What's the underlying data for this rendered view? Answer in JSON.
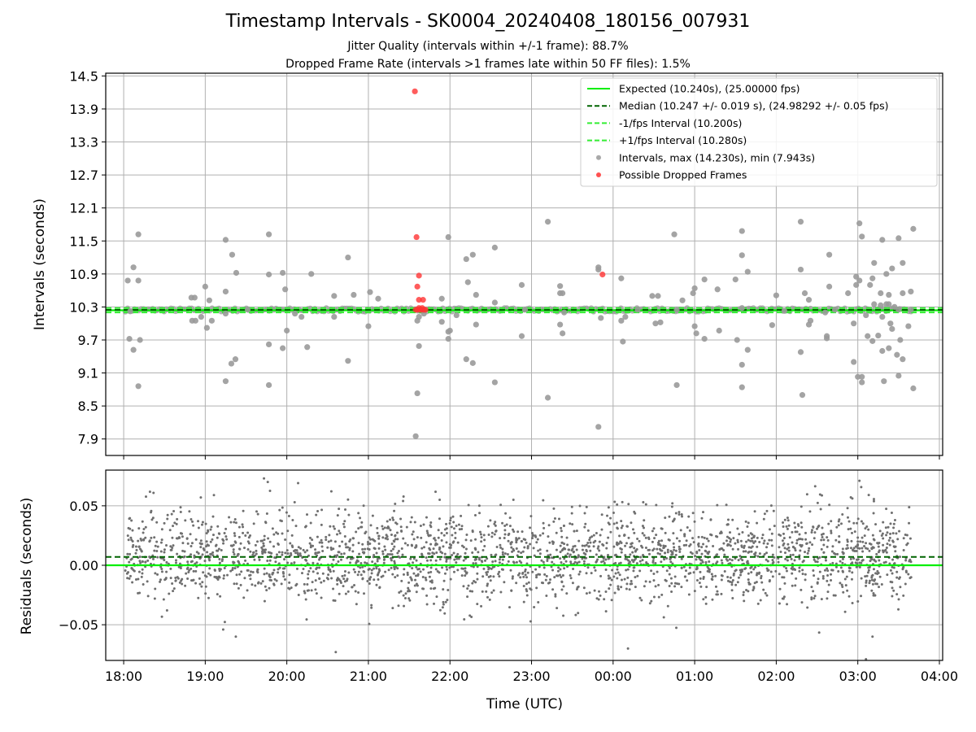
{
  "chart_data": [
    {
      "type": "scatter",
      "title": "Timestamp Intervals - SK0004_20240408_180156_007931",
      "subtitle_lines": [
        "Jitter Quality (intervals within +/-1 frame): 88.7%",
        "Dropped Frame Rate (intervals >1 frames late within 50 FF files): 1.5%"
      ],
      "xlabel": "",
      "ylabel": "Intervals (seconds)",
      "xlim_hours": [
        -0.22,
        10.04
      ],
      "ylim": [
        7.6,
        14.55
      ],
      "yticks": [
        7.9,
        8.5,
        9.1,
        9.7,
        10.3,
        10.9,
        11.5,
        12.1,
        12.7,
        13.3,
        13.9,
        14.5
      ],
      "ytick_labels": [
        "7.9",
        "8.5",
        "9.1",
        "9.7",
        "10.3",
        "10.9",
        "11.5",
        "12.1",
        "12.7",
        "13.3",
        "13.9",
        "14.5"
      ],
      "grid": true,
      "legend_position": "upper-right",
      "legend": [
        "Expected (10.240s), (25.00000 fps)",
        "Median (10.247 +/- 0.019 s), (24.98292 +/- 0.05 fps)",
        "-1/fps Interval (10.200s)",
        "+1/fps Interval (10.280s)",
        "Intervals, max (14.230s), min (7.943s)",
        "Possible Dropped Frames"
      ],
      "reference_lines": {
        "expected": 10.24,
        "median": 10.247,
        "minus_one_frame": 10.2,
        "plus_one_frame": 10.28
      },
      "outlier_intervals": [
        [
          0.05,
          10.78
        ],
        [
          0.07,
          9.72
        ],
        [
          0.08,
          10.22
        ],
        [
          0.12,
          9.52
        ],
        [
          0.12,
          11.02
        ],
        [
          0.18,
          11.62
        ],
        [
          0.18,
          10.78
        ],
        [
          0.18,
          8.86
        ],
        [
          0.2,
          9.7
        ],
        [
          0.83,
          10.47
        ],
        [
          0.87,
          10.47
        ],
        [
          0.84,
          10.05
        ],
        [
          0.88,
          10.05
        ],
        [
          0.95,
          10.12
        ],
        [
          1.0,
          10.67
        ],
        [
          1.02,
          9.92
        ],
        [
          1.05,
          10.42
        ],
        [
          1.08,
          10.05
        ],
        [
          1.25,
          10.18
        ],
        [
          1.25,
          10.58
        ],
        [
          1.25,
          8.95
        ],
        [
          1.25,
          11.52
        ],
        [
          1.32,
          9.27
        ],
        [
          1.33,
          11.25
        ],
        [
          1.37,
          9.35
        ],
        [
          1.38,
          10.92
        ],
        [
          1.52,
          10.25
        ],
        [
          1.78,
          11.62
        ],
        [
          1.78,
          8.88
        ],
        [
          1.78,
          9.62
        ],
        [
          1.78,
          10.89
        ],
        [
          1.95,
          9.55
        ],
        [
          1.95,
          10.92
        ],
        [
          1.98,
          10.62
        ],
        [
          2.0,
          9.87
        ],
        [
          2.1,
          10.18
        ],
        [
          2.18,
          10.12
        ],
        [
          2.25,
          9.57
        ],
        [
          2.3,
          10.9
        ],
        [
          2.58,
          10.12
        ],
        [
          2.58,
          10.5
        ],
        [
          2.75,
          9.32
        ],
        [
          2.75,
          11.2
        ],
        [
          2.82,
          10.52
        ],
        [
          3.0,
          9.95
        ],
        [
          3.02,
          10.57
        ],
        [
          3.12,
          10.45
        ],
        [
          3.58,
          7.95
        ],
        [
          3.6,
          8.73
        ],
        [
          3.62,
          9.59
        ],
        [
          3.6,
          10.05
        ],
        [
          3.62,
          10.12
        ],
        [
          3.68,
          10.18
        ],
        [
          3.9,
          10.45
        ],
        [
          3.9,
          10.03
        ],
        [
          3.98,
          11.57
        ],
        [
          3.98,
          9.85
        ],
        [
          3.98,
          9.72
        ],
        [
          4.0,
          9.87
        ],
        [
          4.08,
          10.15
        ],
        [
          4.2,
          11.17
        ],
        [
          4.2,
          9.35
        ],
        [
          4.22,
          10.75
        ],
        [
          4.28,
          11.25
        ],
        [
          4.28,
          9.28
        ],
        [
          4.32,
          10.52
        ],
        [
          4.32,
          9.98
        ],
        [
          4.55,
          11.38
        ],
        [
          4.55,
          8.93
        ],
        [
          4.55,
          10.38
        ],
        [
          4.88,
          10.7
        ],
        [
          4.88,
          9.77
        ],
        [
          4.92,
          10.25
        ],
        [
          5.2,
          11.85
        ],
        [
          5.2,
          8.65
        ],
        [
          5.35,
          10.55
        ],
        [
          5.35,
          10.68
        ],
        [
          5.38,
          10.55
        ],
        [
          5.35,
          9.98
        ],
        [
          5.38,
          9.82
        ],
        [
          5.4,
          10.2
        ],
        [
          5.82,
          11.02
        ],
        [
          5.82,
          10.98
        ],
        [
          5.82,
          8.12
        ],
        [
          5.85,
          10.1
        ],
        [
          6.1,
          10.82
        ],
        [
          6.1,
          10.05
        ],
        [
          6.12,
          9.67
        ],
        [
          6.15,
          10.12
        ],
        [
          6.3,
          10.25
        ],
        [
          6.48,
          10.5
        ],
        [
          6.52,
          10.0
        ],
        [
          6.55,
          10.5
        ],
        [
          6.58,
          10.02
        ],
        [
          6.75,
          11.62
        ],
        [
          6.78,
          8.88
        ],
        [
          6.78,
          10.25
        ],
        [
          6.85,
          10.42
        ],
        [
          6.98,
          10.55
        ],
        [
          7.0,
          10.64
        ],
        [
          7.0,
          9.95
        ],
        [
          7.02,
          9.82
        ],
        [
          7.12,
          10.8
        ],
        [
          7.12,
          9.72
        ],
        [
          7.28,
          10.62
        ],
        [
          7.3,
          9.87
        ],
        [
          7.5,
          10.8
        ],
        [
          7.52,
          9.7
        ],
        [
          7.58,
          9.25
        ],
        [
          7.58,
          11.24
        ],
        [
          7.58,
          11.68
        ],
        [
          7.58,
          10.28
        ],
        [
          7.58,
          8.84
        ],
        [
          7.65,
          9.52
        ],
        [
          7.65,
          10.94
        ],
        [
          7.95,
          9.97
        ],
        [
          8.0,
          10.51
        ],
        [
          8.1,
          10.23
        ],
        [
          8.3,
          11.85
        ],
        [
          8.3,
          10.98
        ],
        [
          8.3,
          9.48
        ],
        [
          8.32,
          8.7
        ],
        [
          8.35,
          10.55
        ],
        [
          8.4,
          10.43
        ],
        [
          8.4,
          9.98
        ],
        [
          8.42,
          10.05
        ],
        [
          8.6,
          10.2
        ],
        [
          8.62,
          9.77
        ],
        [
          8.62,
          9.73
        ],
        [
          8.65,
          10.67
        ],
        [
          8.65,
          11.25
        ],
        [
          8.72,
          10.25
        ],
        [
          8.88,
          10.55
        ],
        [
          8.95,
          10.0
        ],
        [
          8.95,
          9.3
        ],
        [
          8.98,
          10.7
        ],
        [
          8.98,
          10.85
        ],
        [
          9.0,
          9.03
        ],
        [
          9.02,
          10.78
        ],
        [
          9.02,
          11.82
        ],
        [
          9.05,
          9.03
        ],
        [
          9.05,
          8.93
        ],
        [
          9.05,
          11.58
        ],
        [
          9.1,
          10.15
        ],
        [
          9.12,
          9.77
        ],
        [
          9.15,
          10.7
        ],
        [
          9.18,
          10.82
        ],
        [
          9.18,
          9.68
        ],
        [
          9.2,
          11.1
        ],
        [
          9.2,
          10.35
        ],
        [
          9.25,
          9.78
        ],
        [
          9.28,
          10.55
        ],
        [
          9.28,
          10.33
        ],
        [
          9.3,
          9.5
        ],
        [
          9.3,
          11.52
        ],
        [
          9.3,
          10.12
        ],
        [
          9.32,
          8.95
        ],
        [
          9.35,
          10.9
        ],
        [
          9.35,
          10.35
        ],
        [
          9.38,
          9.55
        ],
        [
          9.38,
          10.52
        ],
        [
          9.38,
          10.35
        ],
        [
          9.4,
          10.0
        ],
        [
          9.42,
          9.9
        ],
        [
          9.42,
          11.0
        ],
        [
          9.45,
          10.3
        ],
        [
          9.48,
          9.43
        ],
        [
          9.5,
          9.05
        ],
        [
          9.5,
          11.55
        ],
        [
          9.5,
          10.25
        ],
        [
          9.52,
          9.7
        ],
        [
          9.55,
          9.35
        ],
        [
          9.55,
          11.1
        ],
        [
          9.55,
          10.55
        ],
        [
          9.62,
          9.95
        ],
        [
          9.65,
          10.58
        ],
        [
          9.65,
          10.25
        ],
        [
          9.68,
          11.72
        ],
        [
          9.68,
          8.82
        ]
      ],
      "dropped_frames": [
        [
          3.57,
          14.22
        ],
        [
          3.59,
          11.57
        ],
        [
          3.62,
          10.87
        ],
        [
          3.6,
          10.67
        ],
        [
          3.62,
          10.43
        ],
        [
          3.67,
          10.43
        ],
        [
          3.58,
          10.25
        ],
        [
          3.6,
          10.25
        ],
        [
          3.63,
          10.25
        ],
        [
          3.65,
          10.25
        ],
        [
          3.68,
          10.25
        ],
        [
          3.7,
          10.25
        ],
        [
          3.62,
          10.28
        ],
        [
          3.66,
          10.28
        ],
        [
          5.87,
          10.89
        ]
      ]
    },
    {
      "type": "scatter",
      "xlabel": "Time (UTC)",
      "ylabel": "Residuals (seconds)",
      "xlim_hours": [
        -0.22,
        10.04
      ],
      "ylim": [
        -0.08,
        0.08
      ],
      "yticks": [
        -0.05,
        0.0,
        0.05
      ],
      "ytick_labels": [
        "−0.05",
        "0.00",
        "0.05"
      ],
      "xticks_hours": [
        0,
        1,
        2,
        3,
        4,
        5,
        6,
        7,
        8,
        9,
        10
      ],
      "xtick_labels": [
        "18:00",
        "19:00",
        "20:00",
        "21:00",
        "22:00",
        "23:00",
        "00:00",
        "01:00",
        "02:00",
        "03:00",
        "04:00"
      ],
      "grid": true,
      "reference_lines": {
        "zero": 0.0,
        "median_offset": 0.007
      },
      "residual_points_summary": {
        "count": 2600,
        "x_range_hours": [
          0.02,
          9.66
        ],
        "core_std": 0.019,
        "extremes": [
          [
            1.22,
            -0.054
          ],
          [
            2.6,
            -0.073
          ],
          [
            9.18,
            -0.06
          ],
          [
            9.1,
            -0.079
          ],
          [
            9.02,
            0.071
          ],
          [
            1.72,
            0.073
          ]
        ]
      }
    }
  ],
  "colors": {
    "expected": "#00ee00",
    "median": "#006400",
    "frame_bounds": "#33ee33",
    "intervals": "#9a9a9a",
    "dropped": "#ff3333",
    "residuals": "#6f6f6f",
    "grid": "#b0b0b0"
  }
}
